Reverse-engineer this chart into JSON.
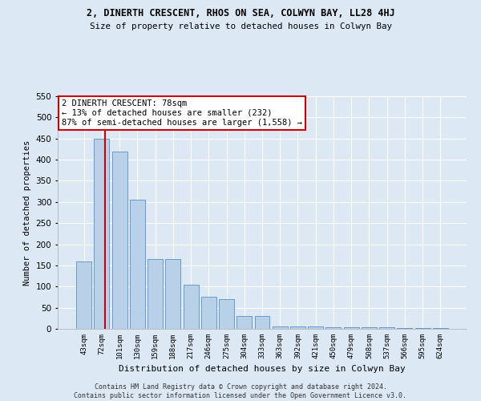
{
  "title": "2, DINERTH CRESCENT, RHOS ON SEA, COLWYN BAY, LL28 4HJ",
  "subtitle": "Size of property relative to detached houses in Colwyn Bay",
  "xlabel": "Distribution of detached houses by size in Colwyn Bay",
  "ylabel": "Number of detached properties",
  "footer_line1": "Contains HM Land Registry data © Crown copyright and database right 2024.",
  "footer_line2": "Contains public sector information licensed under the Open Government Licence v3.0.",
  "annotation_title": "2 DINERTH CRESCENT: 78sqm",
  "annotation_line1": "← 13% of detached houses are smaller (232)",
  "annotation_line2": "87% of semi-detached houses are larger (1,558) →",
  "categories": [
    "43sqm",
    "72sqm",
    "101sqm",
    "130sqm",
    "159sqm",
    "188sqm",
    "217sqm",
    "246sqm",
    "275sqm",
    "304sqm",
    "333sqm",
    "363sqm",
    "392sqm",
    "421sqm",
    "450sqm",
    "479sqm",
    "508sqm",
    "537sqm",
    "566sqm",
    "595sqm",
    "624sqm"
  ],
  "values": [
    160,
    450,
    420,
    305,
    165,
    165,
    105,
    75,
    70,
    30,
    30,
    5,
    5,
    5,
    3,
    3,
    3,
    3,
    2,
    2,
    2
  ],
  "bar_color": "#b8d0e8",
  "bar_edge_color": "#6699cc",
  "vline_color": "#cc0000",
  "annotation_box_color": "#cc0000",
  "bg_color": "#dce9f5",
  "plot_bg_color": "#dce9f5",
  "ylim": [
    0,
    550
  ],
  "yticks": [
    0,
    50,
    100,
    150,
    200,
    250,
    300,
    350,
    400,
    450,
    500,
    550
  ],
  "vline_x_data": 1.207
}
